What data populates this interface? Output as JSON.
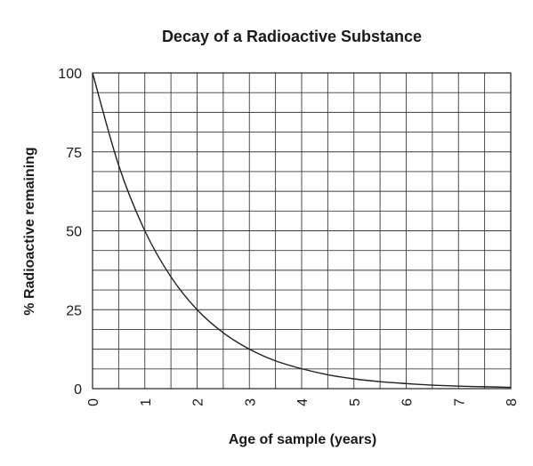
{
  "chart_data": {
    "type": "line",
    "title": "Decay of a Radioactive Substance",
    "xlabel": "Age of sample (years)",
    "ylabel": "% Radioactive remaining",
    "xlim": [
      0,
      8
    ],
    "ylim": [
      0,
      100
    ],
    "x_ticks": [
      "0",
      "1",
      "2",
      "3",
      "4",
      "5",
      "6",
      "7",
      "8"
    ],
    "y_ticks": [
      "0",
      "25",
      "50",
      "75",
      "100"
    ],
    "x_grid_step": 0.5,
    "y_grid_step": 6.25,
    "grid": true,
    "legend": "none",
    "series": [
      {
        "x": [
          0,
          0.5,
          1,
          1.5,
          2,
          2.5,
          3,
          3.5,
          4,
          4.5,
          5,
          5.5,
          6,
          6.5,
          7,
          7.5,
          8
        ],
        "y": [
          100,
          70.7,
          50,
          35.4,
          25,
          17.7,
          12.5,
          8.8,
          6.3,
          4.4,
          3.1,
          2.2,
          1.6,
          1.1,
          0.8,
          0.6,
          0.4
        ]
      }
    ]
  }
}
